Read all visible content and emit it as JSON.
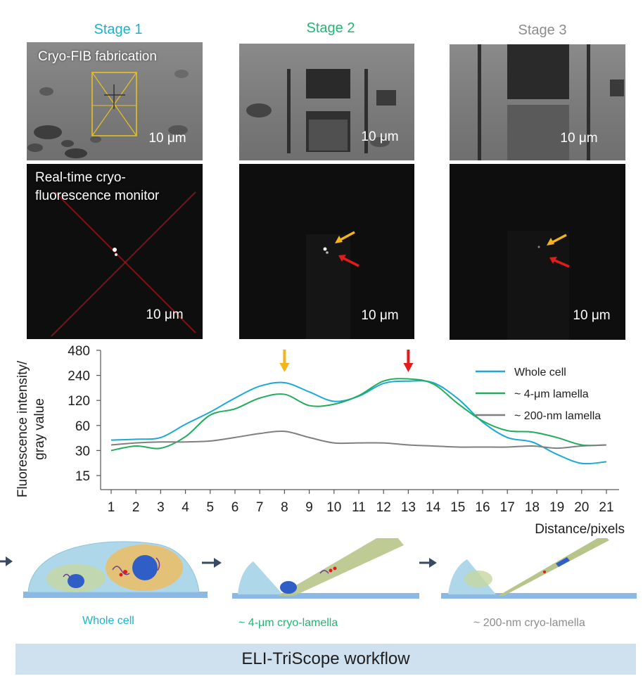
{
  "colors": {
    "stage1": "#1ab3cf",
    "stage2": "#22b573",
    "stage3": "#8c8c8c",
    "whole_cell": "#1aa9d6",
    "lamella_4um": "#21ad5c",
    "lamella_200nm": "#7f7f7f",
    "arrow_yellow": "#f3b51b",
    "arrow_red": "#e31b1b",
    "footer_bg": "#cfe0ef"
  },
  "stages": {
    "s1": "Stage 1",
    "s2": "Stage 2",
    "s3": "Stage 3"
  },
  "panels": {
    "cryo_fib_label": "Cryo-FIB fabrication",
    "monitor_label_line1": "Real-time cryo-",
    "monitor_label_line2": "fluorescence monitor",
    "scale_bar": "10 μm"
  },
  "chart_data": {
    "type": "line",
    "ylabel_line1": "Fluorescence intensity/",
    "ylabel_line2": "gray value",
    "xlabel": "Distance/pixels",
    "y_scale": "log",
    "x_ticks": [
      1,
      2,
      3,
      4,
      5,
      6,
      7,
      8,
      9,
      10,
      11,
      12,
      13,
      14,
      15,
      16,
      17,
      18,
      19,
      20,
      21
    ],
    "y_ticks": [
      15,
      30,
      60,
      120,
      240,
      480
    ],
    "ylim": [
      15,
      480
    ],
    "xlim": [
      1,
      21
    ],
    "legend_position": "top-right",
    "annotations": [
      {
        "type": "arrow",
        "color": "yellow",
        "x": 8
      },
      {
        "type": "arrow",
        "color": "red",
        "x": 13
      }
    ],
    "series": [
      {
        "name": "Whole cell",
        "color": "#1aa9d6",
        "x": [
          1,
          2,
          3,
          4,
          5,
          6,
          7,
          8,
          9,
          10,
          11,
          12,
          13,
          14,
          15,
          16,
          17,
          18,
          19,
          20,
          21
        ],
        "y": [
          40,
          41,
          43,
          62,
          87,
          128,
          178,
          196,
          152,
          117,
          135,
          192,
          205,
          196,
          126,
          66,
          43,
          38,
          27,
          21,
          22
        ]
      },
      {
        "name": "~ 4-μm lamella",
        "color": "#21ad5c",
        "x": [
          1,
          2,
          3,
          4,
          5,
          6,
          7,
          8,
          9,
          10,
          11,
          12,
          13,
          14,
          15,
          16,
          17,
          18,
          19,
          20,
          21
        ],
        "y": [
          30,
          34,
          32,
          44,
          80,
          95,
          128,
          142,
          104,
          108,
          137,
          205,
          218,
          190,
          110,
          68,
          52,
          50,
          43,
          35,
          35
        ]
      },
      {
        "name": "~ 200-nm lamella",
        "color": "#7f7f7f",
        "x": [
          1,
          2,
          3,
          4,
          5,
          6,
          7,
          8,
          9,
          10,
          11,
          12,
          13,
          14,
          15,
          16,
          17,
          18,
          19,
          20,
          21
        ],
        "y": [
          35,
          37,
          38,
          38,
          39,
          43,
          48,
          51,
          43,
          37,
          37,
          37,
          35,
          34,
          33,
          33,
          33,
          34,
          32,
          34,
          35
        ]
      }
    ]
  },
  "bottom": {
    "whole_cell": "Whole cell",
    "lamella_4um": "~ 4-μm cryo-lamella",
    "lamella_200nm": "~ 200-nm cryo-lamella"
  },
  "footer": {
    "label": "ELI-TriScope workflow"
  }
}
